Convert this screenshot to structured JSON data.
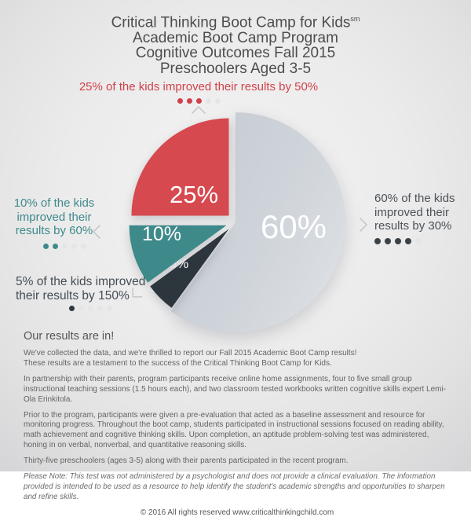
{
  "title": {
    "line1": "Critical Thinking Boot Camp for Kids",
    "line1_sup": "sm",
    "line2": "Academic Boot Camp Program",
    "line3": "Cognitive Outcomes Fall 2015",
    "line4": "Preschoolers Aged 3-5"
  },
  "chart_data": {
    "type": "pie",
    "title": "Cognitive Outcomes Fall 2015 - Preschoolers Aged 3-5",
    "direction": "clockwise",
    "start_angle_deg": 0,
    "slices": [
      {
        "label": "60%",
        "value": 60,
        "color": "#d2d6dc",
        "description": "60% of the kids improved their results by 30%"
      },
      {
        "label": "5%",
        "value": 5,
        "color": "#2c363c",
        "description": "5% of the kids improved their results by 150%"
      },
      {
        "label": "10%",
        "value": 10,
        "color": "#3e8a8b",
        "description": "10% of the kids improved their results by 60%"
      },
      {
        "label": "25%",
        "value": 25,
        "color": "#d6494f",
        "description": "25% of the kids improved their results by 50%"
      }
    ]
  },
  "callouts": {
    "red": {
      "text": "25% of the kids improved their results by 50%",
      "color": "#cf4249",
      "dot_color": "#cf4249",
      "dots_filled": 3,
      "dots_total": 5
    },
    "teal": {
      "lines": [
        "10% of the kids",
        "improved their",
        "results by 60%"
      ],
      "color": "#3e8a8b",
      "dot_color": "#3e8a8b",
      "dots_filled": 2,
      "dots_total": 5
    },
    "dark": {
      "lines": [
        "5% of the kids improved",
        "their results by 150%"
      ],
      "color": "#454e54",
      "dot_color": "#2f383d",
      "dots_filled": 1,
      "dots_total": 5
    },
    "gray": {
      "lines": [
        "60% of the kids",
        "improved their",
        "results by 30%"
      ],
      "color": "#4c5358",
      "dot_color": "#3a4247",
      "dots_filled": 4,
      "dots_total": 5
    }
  },
  "icons": {
    "red": "chevron-up",
    "teal": "chevron-left",
    "dark": "chevron-down-left",
    "gray": "chevron-right"
  },
  "theme": {
    "dot_empty": "#e4e5e7",
    "chevron": "#c7c8cb",
    "background_vignette": "#d5d5d7"
  },
  "results": {
    "heading": "Our results are in!",
    "paragraphs": [
      "We've collected the data, and we're thrilled to report our Fall 2015 Academic Boot Camp results!\nThese results are a testament to the success of the Critical Thinking Boot Camp for Kids.",
      "In partnership with their parents, program participants receive online home assignments, four to five small group instructional teaching sessions (1.5 hours each), and two classroom tested workbooks written cognitive skills expert Lemi-Ola Erinkitola.",
      "Prior to the program, participants were given a pre-evaluation that acted as a baseline assessment and resource for monitoring progress. Throughout the boot camp, students participated in instructional sessions focused on reading ability, math achievement and cognitive thinking skills. Upon completion, an aptitude problem-solving test was administered, honing in on verbal, nonverbal, and quantitative reasoning skills.",
      "Thirty-five preschoolers (ages 3-5) along with their parents participated in the recent program."
    ],
    "note": "Please Note: This test was not administered by a psychologist and does not provide a clinical evaluation.  The information provided is intended to be used as a resource to help identify the student's academic strengths and opportunities to sharpen and refine skills.",
    "footer": "© 2016  All rights reserved www.criticalthinkingchild.com"
  }
}
